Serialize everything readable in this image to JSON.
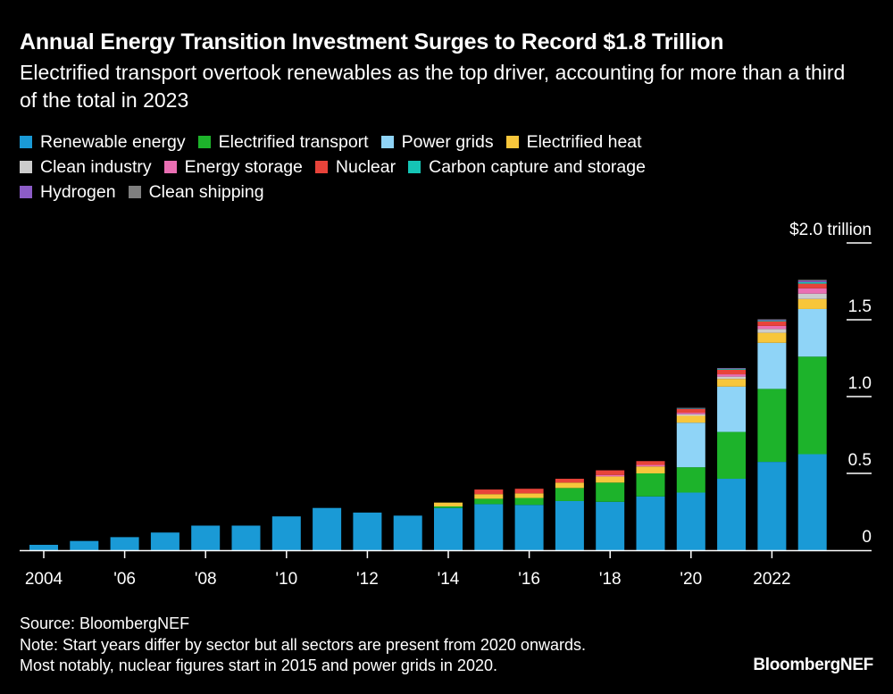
{
  "title": "Annual Energy Transition Investment Surges to Record $1.8 Trillion",
  "subtitle": "Electrified transport overtook renewables as the top driver, accounting for more than a third of the total in 2023",
  "legend_rows": [
    [
      {
        "label": "Renewable energy",
        "color": "#1a9ad6"
      },
      {
        "label": "Electrified transport",
        "color": "#1db32b"
      },
      {
        "label": "Power grids",
        "color": "#8fd4f7"
      },
      {
        "label": "Electrified heat",
        "color": "#f7c63b"
      }
    ],
    [
      {
        "label": "Clean industry",
        "color": "#cccccc"
      },
      {
        "label": "Energy storage",
        "color": "#ea6fb3"
      },
      {
        "label": "Nuclear",
        "color": "#e8433a"
      },
      {
        "label": "Carbon capture and storage",
        "color": "#15c4b5"
      }
    ],
    [
      {
        "label": "Hydrogen",
        "color": "#8c5cc7"
      },
      {
        "label": "Clean shipping",
        "color": "#7f7f7f"
      }
    ]
  ],
  "chart_data": {
    "type": "bar",
    "stacked": true,
    "title": "Annual Energy Transition Investment Surges to Record $1.8 Trillion",
    "unit": "trillion USD",
    "categories": [
      "2004",
      "2005",
      "2006",
      "2007",
      "2008",
      "2009",
      "2010",
      "2011",
      "2012",
      "2013",
      "2014",
      "2015",
      "2016",
      "2017",
      "2018",
      "2019",
      "2020",
      "2021",
      "2022",
      "2023"
    ],
    "x_tick_labels": [
      {
        "category": "2004",
        "label": "2004"
      },
      {
        "category": "2006",
        "label": "'06"
      },
      {
        "category": "2008",
        "label": "'08"
      },
      {
        "category": "2010",
        "label": "'10"
      },
      {
        "category": "2012",
        "label": "'12"
      },
      {
        "category": "2014",
        "label": "'14"
      },
      {
        "category": "2016",
        "label": "'16"
      },
      {
        "category": "2018",
        "label": "'18"
      },
      {
        "category": "2020",
        "label": "'20"
      },
      {
        "category": "2022",
        "label": "2022"
      }
    ],
    "y_ticks": [
      {
        "value": 0,
        "label": "0"
      },
      {
        "value": 0.5,
        "label": "0.5"
      },
      {
        "value": 1.0,
        "label": "1.0"
      },
      {
        "value": 1.5,
        "label": "1.5"
      },
      {
        "value": 2.0,
        "label": "$2.0 trillion"
      }
    ],
    "ylim": [
      0,
      2.0
    ],
    "series": [
      {
        "name": "Renewable energy",
        "color": "#1a9ad6",
        "values": [
          0.035,
          0.06,
          0.085,
          0.115,
          0.16,
          0.16,
          0.22,
          0.275,
          0.245,
          0.225,
          0.275,
          0.3,
          0.295,
          0.32,
          0.315,
          0.35,
          0.375,
          0.465,
          0.575,
          0.625
        ]
      },
      {
        "name": "Electrified transport",
        "color": "#1db32b",
        "values": [
          0,
          0,
          0,
          0,
          0,
          0,
          0,
          0,
          0,
          0,
          0.01,
          0.035,
          0.045,
          0.085,
          0.125,
          0.15,
          0.165,
          0.305,
          0.475,
          0.635
        ]
      },
      {
        "name": "Power grids",
        "color": "#8fd4f7",
        "values": [
          0,
          0,
          0,
          0,
          0,
          0,
          0,
          0,
          0,
          0,
          0,
          0,
          0,
          0,
          0,
          0,
          0.29,
          0.295,
          0.3,
          0.31
        ]
      },
      {
        "name": "Electrified heat",
        "color": "#f7c63b",
        "values": [
          0,
          0,
          0,
          0,
          0,
          0,
          0,
          0,
          0,
          0,
          0.025,
          0.03,
          0.03,
          0.035,
          0.04,
          0.045,
          0.045,
          0.05,
          0.065,
          0.065
        ]
      },
      {
        "name": "Clean industry",
        "color": "#cccccc",
        "values": [
          0,
          0,
          0,
          0,
          0,
          0,
          0,
          0,
          0,
          0,
          0,
          0,
          0,
          0,
          0,
          0,
          0.01,
          0.015,
          0.025,
          0.035
        ]
      },
      {
        "name": "Energy storage",
        "color": "#ea6fb3",
        "values": [
          0,
          0,
          0,
          0,
          0,
          0,
          0,
          0,
          0,
          0,
          0,
          0,
          0,
          0,
          0.01,
          0.01,
          0.01,
          0.015,
          0.02,
          0.035
        ]
      },
      {
        "name": "Nuclear",
        "color": "#e8433a",
        "values": [
          0,
          0,
          0,
          0,
          0,
          0,
          0,
          0,
          0,
          0,
          0,
          0.03,
          0.03,
          0.025,
          0.03,
          0.025,
          0.025,
          0.03,
          0.03,
          0.03
        ]
      },
      {
        "name": "Carbon capture and storage",
        "color": "#15c4b5",
        "values": [
          0,
          0,
          0,
          0,
          0,
          0,
          0,
          0,
          0,
          0,
          0,
          0,
          0,
          0,
          0,
          0,
          0.003,
          0.005,
          0.006,
          0.01
        ]
      },
      {
        "name": "Hydrogen",
        "color": "#8c5cc7",
        "values": [
          0,
          0,
          0,
          0,
          0,
          0,
          0,
          0,
          0,
          0,
          0,
          0,
          0,
          0,
          0,
          0,
          0.002,
          0.004,
          0.004,
          0.01
        ]
      },
      {
        "name": "Clean shipping",
        "color": "#7f7f7f",
        "values": [
          0,
          0,
          0,
          0,
          0,
          0,
          0,
          0,
          0,
          0,
          0,
          0,
          0,
          0,
          0,
          0,
          0.002,
          0.002,
          0.003,
          0.005
        ]
      }
    ]
  },
  "footer": {
    "source": "Source: BloombergNEF",
    "note_line1": "Note: Start years differ by sector but all sectors are present from 2020 onwards.",
    "note_line2": "Most notably, nuclear figures start in 2015 and power grids in 2020."
  },
  "brand": "BloombergNEF"
}
